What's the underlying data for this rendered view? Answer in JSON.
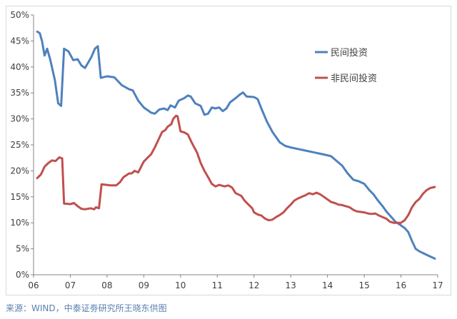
{
  "chart_data": {
    "type": "line",
    "title": "",
    "xlabel": "",
    "ylabel": "",
    "x_ticks": [
      "06",
      "07",
      "08",
      "09",
      "10",
      "11",
      "12",
      "13",
      "14",
      "15",
      "16",
      "17"
    ],
    "y_ticks": [
      "0%",
      "5%",
      "10%",
      "15%",
      "20%",
      "25%",
      "30%",
      "35%",
      "40%",
      "45%",
      "50%"
    ],
    "ylim": [
      0,
      50
    ],
    "xlim": [
      2006,
      2017
    ],
    "grid": false,
    "legend_position": "top-right",
    "series": [
      {
        "name": "民间投资",
        "color": "#4f81bd",
        "points": [
          [
            2006.1,
            46.8
          ],
          [
            2006.17,
            46.5
          ],
          [
            2006.23,
            45.0
          ],
          [
            2006.3,
            42.2
          ],
          [
            2006.37,
            43.5
          ],
          [
            2006.45,
            41.5
          ],
          [
            2006.58,
            37.5
          ],
          [
            2006.67,
            33.0
          ],
          [
            2006.75,
            32.5
          ],
          [
            2006.83,
            43.5
          ],
          [
            2006.95,
            43.0
          ],
          [
            2007.08,
            41.3
          ],
          [
            2007.2,
            41.5
          ],
          [
            2007.3,
            40.3
          ],
          [
            2007.4,
            39.8
          ],
          [
            2007.5,
            41.0
          ],
          [
            2007.58,
            42.0
          ],
          [
            2007.67,
            43.5
          ],
          [
            2007.75,
            44.0
          ],
          [
            2007.83,
            37.9
          ],
          [
            2008.0,
            38.2
          ],
          [
            2008.2,
            38.0
          ],
          [
            2008.4,
            36.5
          ],
          [
            2008.6,
            35.7
          ],
          [
            2008.7,
            35.5
          ],
          [
            2008.85,
            33.5
          ],
          [
            2009.0,
            32.2
          ],
          [
            2009.2,
            31.2
          ],
          [
            2009.3,
            31.0
          ],
          [
            2009.42,
            31.8
          ],
          [
            2009.55,
            32.0
          ],
          [
            2009.65,
            31.7
          ],
          [
            2009.73,
            32.6
          ],
          [
            2009.85,
            32.2
          ],
          [
            2009.95,
            33.5
          ],
          [
            2010.1,
            34.0
          ],
          [
            2010.2,
            34.5
          ],
          [
            2010.28,
            34.3
          ],
          [
            2010.4,
            33.0
          ],
          [
            2010.55,
            32.5
          ],
          [
            2010.65,
            30.8
          ],
          [
            2010.75,
            31.0
          ],
          [
            2010.85,
            32.2
          ],
          [
            2010.95,
            32.0
          ],
          [
            2011.05,
            32.2
          ],
          [
            2011.15,
            31.5
          ],
          [
            2011.25,
            32.0
          ],
          [
            2011.35,
            33.2
          ],
          [
            2011.5,
            34.0
          ],
          [
            2011.6,
            34.6
          ],
          [
            2011.7,
            35.1
          ],
          [
            2011.8,
            34.3
          ],
          [
            2012.0,
            34.2
          ],
          [
            2012.1,
            33.8
          ],
          [
            2012.2,
            32.0
          ],
          [
            2012.35,
            29.5
          ],
          [
            2012.5,
            27.5
          ],
          [
            2012.7,
            25.5
          ],
          [
            2012.85,
            24.8
          ],
          [
            2013.0,
            24.5
          ],
          [
            2013.2,
            24.2
          ],
          [
            2013.4,
            23.9
          ],
          [
            2013.6,
            23.6
          ],
          [
            2013.8,
            23.3
          ],
          [
            2014.0,
            23.0
          ],
          [
            2014.1,
            22.8
          ],
          [
            2014.2,
            22.2
          ],
          [
            2014.4,
            21.0
          ],
          [
            2014.55,
            19.5
          ],
          [
            2014.7,
            18.3
          ],
          [
            2014.85,
            18.0
          ],
          [
            2015.0,
            17.5
          ],
          [
            2015.15,
            16.2
          ],
          [
            2015.25,
            15.5
          ],
          [
            2015.35,
            14.5
          ],
          [
            2015.5,
            13.2
          ],
          [
            2015.6,
            12.2
          ],
          [
            2015.75,
            11.0
          ],
          [
            2015.85,
            10.2
          ],
          [
            2016.0,
            9.5
          ],
          [
            2016.1,
            9.0
          ],
          [
            2016.2,
            8.2
          ],
          [
            2016.3,
            6.5
          ],
          [
            2016.4,
            5.0
          ],
          [
            2016.5,
            4.5
          ],
          [
            2016.65,
            4.0
          ],
          [
            2016.8,
            3.5
          ],
          [
            2016.92,
            3.1
          ]
        ]
      },
      {
        "name": "非民间投资",
        "color": "#c0504d",
        "points": [
          [
            2006.1,
            18.6
          ],
          [
            2006.2,
            19.3
          ],
          [
            2006.3,
            20.8
          ],
          [
            2006.4,
            21.5
          ],
          [
            2006.5,
            22.0
          ],
          [
            2006.6,
            21.9
          ],
          [
            2006.7,
            22.6
          ],
          [
            2006.78,
            22.4
          ],
          [
            2006.83,
            13.7
          ],
          [
            2007.0,
            13.6
          ],
          [
            2007.1,
            13.8
          ],
          [
            2007.2,
            13.2
          ],
          [
            2007.3,
            12.7
          ],
          [
            2007.4,
            12.6
          ],
          [
            2007.55,
            12.8
          ],
          [
            2007.65,
            12.6
          ],
          [
            2007.7,
            13.0
          ],
          [
            2007.78,
            12.8
          ],
          [
            2007.85,
            17.4
          ],
          [
            2008.0,
            17.3
          ],
          [
            2008.1,
            17.2
          ],
          [
            2008.25,
            17.2
          ],
          [
            2008.35,
            17.8
          ],
          [
            2008.45,
            18.8
          ],
          [
            2008.6,
            19.5
          ],
          [
            2008.67,
            19.5
          ],
          [
            2008.75,
            20.0
          ],
          [
            2008.85,
            19.7
          ],
          [
            2009.0,
            21.8
          ],
          [
            2009.1,
            22.5
          ],
          [
            2009.2,
            23.2
          ],
          [
            2009.3,
            24.5
          ],
          [
            2009.4,
            26.0
          ],
          [
            2009.5,
            27.5
          ],
          [
            2009.58,
            27.8
          ],
          [
            2009.65,
            28.5
          ],
          [
            2009.75,
            29.0
          ],
          [
            2009.8,
            30.0
          ],
          [
            2009.88,
            30.6
          ],
          [
            2009.92,
            30.5
          ],
          [
            2010.0,
            27.6
          ],
          [
            2010.1,
            27.4
          ],
          [
            2010.2,
            27.0
          ],
          [
            2010.3,
            25.5
          ],
          [
            2010.45,
            23.5
          ],
          [
            2010.55,
            21.5
          ],
          [
            2010.65,
            20.0
          ],
          [
            2010.75,
            18.8
          ],
          [
            2010.85,
            17.5
          ],
          [
            2010.95,
            17.0
          ],
          [
            2011.05,
            17.3
          ],
          [
            2011.2,
            17.0
          ],
          [
            2011.3,
            17.2
          ],
          [
            2011.4,
            16.8
          ],
          [
            2011.5,
            15.7
          ],
          [
            2011.65,
            15.2
          ],
          [
            2011.75,
            14.2
          ],
          [
            2011.85,
            13.5
          ],
          [
            2011.95,
            12.8
          ],
          [
            2012.0,
            12.0
          ],
          [
            2012.1,
            11.6
          ],
          [
            2012.2,
            11.4
          ],
          [
            2012.3,
            10.8
          ],
          [
            2012.4,
            10.5
          ],
          [
            2012.5,
            10.6
          ],
          [
            2012.6,
            11.1
          ],
          [
            2012.7,
            11.5
          ],
          [
            2012.8,
            12.0
          ],
          [
            2012.9,
            12.8
          ],
          [
            2013.0,
            13.5
          ],
          [
            2013.1,
            14.3
          ],
          [
            2013.2,
            14.7
          ],
          [
            2013.3,
            15.0
          ],
          [
            2013.4,
            15.3
          ],
          [
            2013.5,
            15.7
          ],
          [
            2013.6,
            15.5
          ],
          [
            2013.7,
            15.8
          ],
          [
            2013.8,
            15.5
          ],
          [
            2013.9,
            15.0
          ],
          [
            2014.0,
            14.5
          ],
          [
            2014.1,
            14.0
          ],
          [
            2014.2,
            13.8
          ],
          [
            2014.3,
            13.5
          ],
          [
            2014.4,
            13.4
          ],
          [
            2014.5,
            13.2
          ],
          [
            2014.6,
            13.0
          ],
          [
            2014.7,
            12.5
          ],
          [
            2014.8,
            12.2
          ],
          [
            2014.9,
            12.1
          ],
          [
            2015.0,
            12.0
          ],
          [
            2015.1,
            11.8
          ],
          [
            2015.2,
            11.7
          ],
          [
            2015.3,
            11.8
          ],
          [
            2015.4,
            11.4
          ],
          [
            2015.5,
            11.1
          ],
          [
            2015.6,
            10.8
          ],
          [
            2015.7,
            10.2
          ],
          [
            2015.8,
            10.0
          ],
          [
            2015.9,
            10.0
          ],
          [
            2016.0,
            10.0
          ],
          [
            2016.1,
            10.5
          ],
          [
            2016.2,
            11.5
          ],
          [
            2016.3,
            13.0
          ],
          [
            2016.4,
            14.0
          ],
          [
            2016.5,
            14.6
          ],
          [
            2016.6,
            15.6
          ],
          [
            2016.7,
            16.3
          ],
          [
            2016.8,
            16.7
          ],
          [
            2016.92,
            16.9
          ]
        ]
      }
    ]
  },
  "source_note": "来源：WIND，中泰证劵研究所王晓东供图"
}
